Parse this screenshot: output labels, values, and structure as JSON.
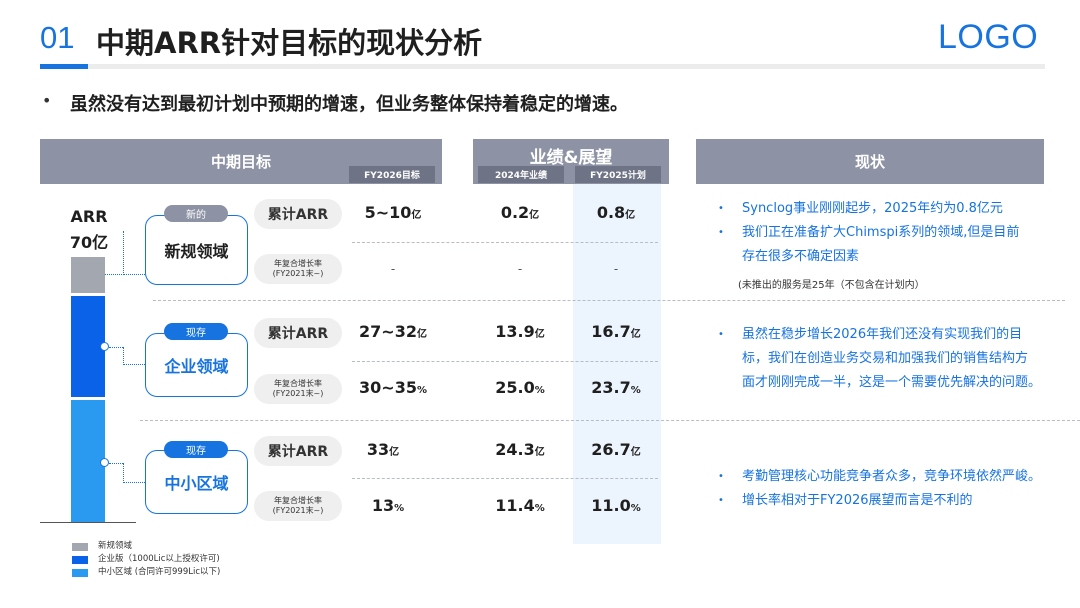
{
  "header": {
    "number": "01",
    "title": "中期ARR针对目标的现状分析",
    "logo": "LOGO"
  },
  "bullet": "虽然没有达到最初计划中预期的增速，但业务整体保持着稳定的增速。",
  "table": {
    "col_mid_target": "中期目标",
    "col_performance": "业绩&展望",
    "col_status": "现状",
    "sub_fy2026": "FY2026目标",
    "sub_2024": "2024年业绩",
    "sub_fy2025": "FY2025计划",
    "arr_label": "ARR",
    "arr_value": "70亿"
  },
  "rows": [
    {
      "tag": "新的",
      "tag_color": "#8d93a4",
      "region": "新规领域",
      "region_color": "#1f1f1f",
      "metric1": "累计ARR",
      "metric2_line1": "年复合增长率",
      "metric2_line2": "(FY2021末~)",
      "target1": "5~10",
      "target1_unit": "亿",
      "actual1": "0.2",
      "actual1_unit": "亿",
      "plan1": "0.8",
      "plan1_unit": "亿",
      "target2": "-",
      "actual2": "-",
      "plan2": "-"
    },
    {
      "tag": "现存",
      "tag_color": "#1673e0",
      "region": "企业领域",
      "region_color": "#1673e0",
      "metric1": "累计ARR",
      "metric2_line1": "年复合增长率",
      "metric2_line2": "(FY2021末~)",
      "target1": "27~32",
      "target1_unit": "亿",
      "actual1": "13.9",
      "actual1_unit": "亿",
      "plan1": "16.7",
      "plan1_unit": "亿",
      "target2": "30~35",
      "target2_unit": "%",
      "actual2": "25.0",
      "actual2_unit": "%",
      "plan2": "23.7",
      "plan2_unit": "%"
    },
    {
      "tag": "现存",
      "tag_color": "#1673e0",
      "region": "中小区域",
      "region_color": "#1673e0",
      "metric1": "累计ARR",
      "metric2_line1": "年复合增长率",
      "metric2_line2": "(FY2021末~)",
      "target1": "33",
      "target1_unit": "亿",
      "actual1": "24.3",
      "actual1_unit": "亿",
      "plan1": "26.7",
      "plan1_unit": "亿",
      "target2": "13",
      "target2_unit": "%",
      "actual2": "11.4",
      "actual2_unit": "%",
      "plan2": "11.0",
      "plan2_unit": "%"
    }
  ],
  "status": {
    "new": [
      "Synclog事业刚刚起步，2025年约为0.8亿元",
      "我们正在准备扩大Chimspi系列的领域,但是目前",
      "存在很多不确定因素"
    ],
    "new_note": "(未推出的服务是25年（不包含在计划内）",
    "enterprise": [
      "虽然在稳步增长2026年我们还没有实现我们的目",
      "标，我们在创造业务交易和加强我们的销售结构方",
      "面才刚刚完成一半，这是一个需要优先解决的问题。"
    ],
    "smb": [
      "考勤管理核心功能竞争者众多，竞争环境依然严峻。",
      "增长率相对于FY2026展望而言是不利的"
    ]
  },
  "legend": [
    {
      "label": "新规领域",
      "color": "#a3a7b0"
    },
    {
      "label": "企业版（1000Lic以上授权许可)",
      "color": "#0a62e8"
    },
    {
      "label": "中小区域 (合同许可999Lic以下)",
      "color": "#2a9af0"
    }
  ]
}
